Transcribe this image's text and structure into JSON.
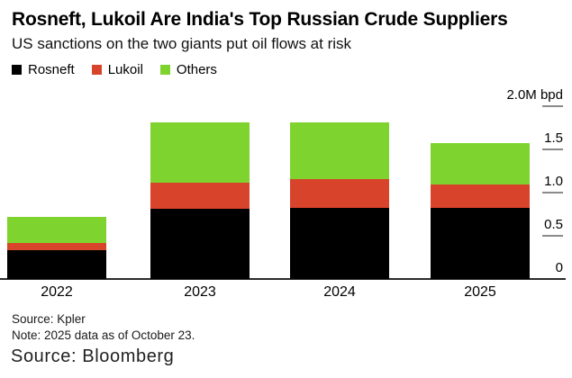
{
  "header": {
    "title": "Rosneft, Lukoil Are India's Top Russian Crude Suppliers",
    "subtitle": "US sanctions on the two giants put oil flows at risk"
  },
  "legend": [
    {
      "name": "rosneft",
      "label": "Rosneft",
      "color": "#000000"
    },
    {
      "name": "lukoil",
      "label": "Lukoil",
      "color": "#d8432b"
    },
    {
      "name": "others",
      "label": "Others",
      "color": "#7fd32e"
    }
  ],
  "chart_data": {
    "type": "bar",
    "stacked": true,
    "title": "Rosneft, Lukoil Are India's Top Russian Crude Suppliers",
    "subtitle": "US sanctions on the two giants put oil flows at risk",
    "unit": "M bpd",
    "categories": [
      "2022",
      "2023",
      "2024",
      "2025"
    ],
    "series": [
      {
        "name": "Rosneft",
        "color": "#000000",
        "values": [
          0.33,
          0.81,
          0.82,
          0.82
        ]
      },
      {
        "name": "Lukoil",
        "color": "#d8432b",
        "values": [
          0.09,
          0.3,
          0.33,
          0.27
        ]
      },
      {
        "name": "Others",
        "color": "#7fd32e",
        "values": [
          0.3,
          0.7,
          0.66,
          0.48
        ]
      }
    ],
    "totals": [
      0.72,
      1.81,
      1.81,
      1.57
    ],
    "ylim": [
      0,
      2.0
    ],
    "y_ticks": [
      {
        "label": "2.0M bpd",
        "value": 2.0,
        "show_tick": true
      },
      {
        "label": "1.5",
        "value": 1.5,
        "show_tick": true
      },
      {
        "label": "1.0",
        "value": 1.0,
        "show_tick": true
      },
      {
        "label": "0.5",
        "value": 0.5,
        "show_tick": true
      },
      {
        "label": "0",
        "value": 0.0,
        "show_tick": false
      }
    ],
    "axis_side": "right",
    "grid": false,
    "legend_position": "top-left"
  },
  "footer": {
    "source_note": "Source: Kpler",
    "data_note": "Note: 2025 data as of October 23.",
    "attribution": "Source: Bloomberg"
  }
}
